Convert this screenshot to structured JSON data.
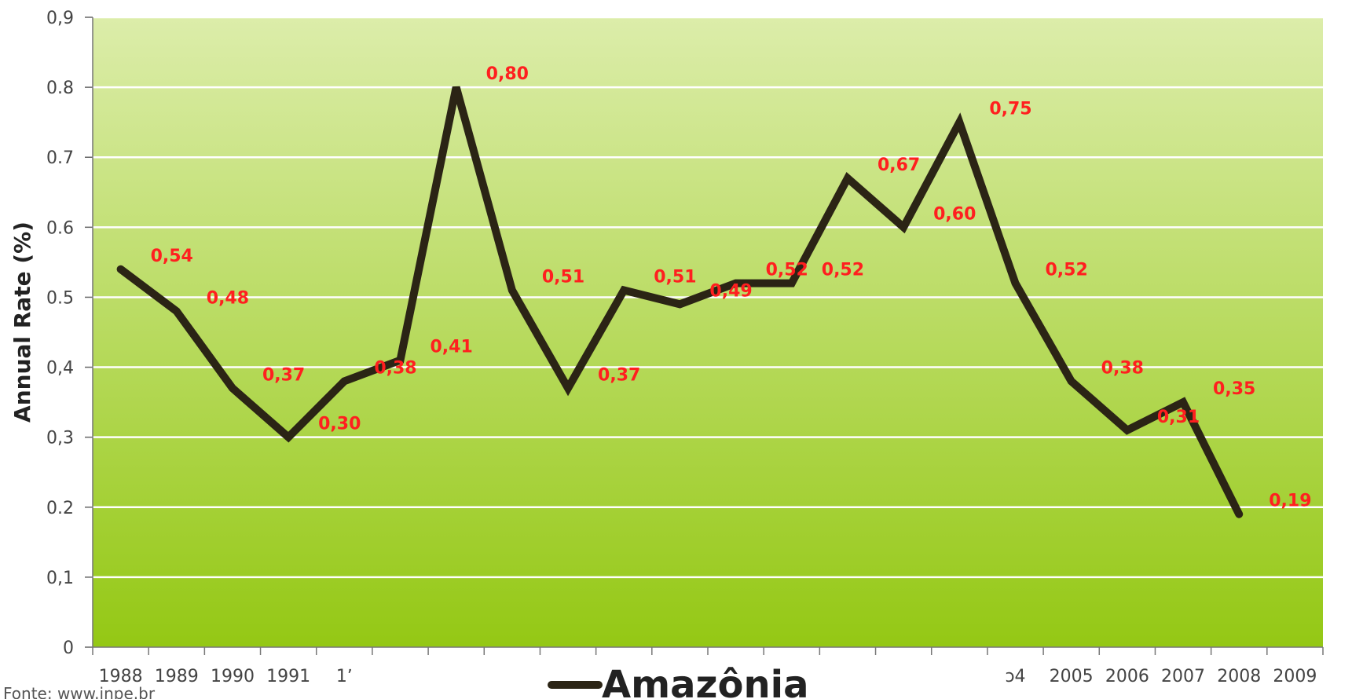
{
  "chart_data": {
    "type": "line",
    "ylabel": "Annual Rate (%)",
    "ylim": [
      0,
      0.9
    ],
    "y_ticks": [
      "0",
      "0,1",
      "0.2",
      "0,3",
      "0,4",
      "0.5",
      "0.6",
      "0.7",
      "0.8",
      "0,9"
    ],
    "x_tick_labels": [
      "1988",
      "1989",
      "1990",
      "1991",
      "1ʼ",
      "",
      "",
      "",
      "",
      "",
      "",
      "",
      "",
      "",
      "",
      "",
      "ɔ4",
      "2005",
      "2006",
      "2007",
      "2008",
      "2009"
    ],
    "grid": true,
    "legend_position": "bottom-center",
    "series": [
      {
        "name": "Amazônia",
        "color": "#2b2415",
        "values": [
          0.54,
          0.48,
          0.37,
          0.3,
          0.38,
          0.41,
          0.8,
          0.51,
          0.37,
          0.51,
          0.49,
          0.52,
          0.52,
          0.67,
          0.6,
          0.75,
          0.52,
          0.38,
          0.31,
          0.35,
          0.19
        ],
        "data_labels": [
          "0,54",
          "0,48",
          "0,37",
          "0,30",
          "0,38",
          "0,41",
          "0,80",
          "0,51",
          "0,37",
          "0,51",
          "0,49",
          "0,52",
          "0,52",
          "0,67",
          "0,60",
          "0,75",
          "0,52",
          "0,38",
          "0,31",
          "0,35",
          "0,19"
        ]
      }
    ],
    "colors": {
      "plot_top": "#dcedaa",
      "plot_bottom": "#94c814",
      "gridline": "#ffffff",
      "data_label": "#ff1f1f"
    },
    "source_text": "Fonte: www.inpe.br"
  }
}
